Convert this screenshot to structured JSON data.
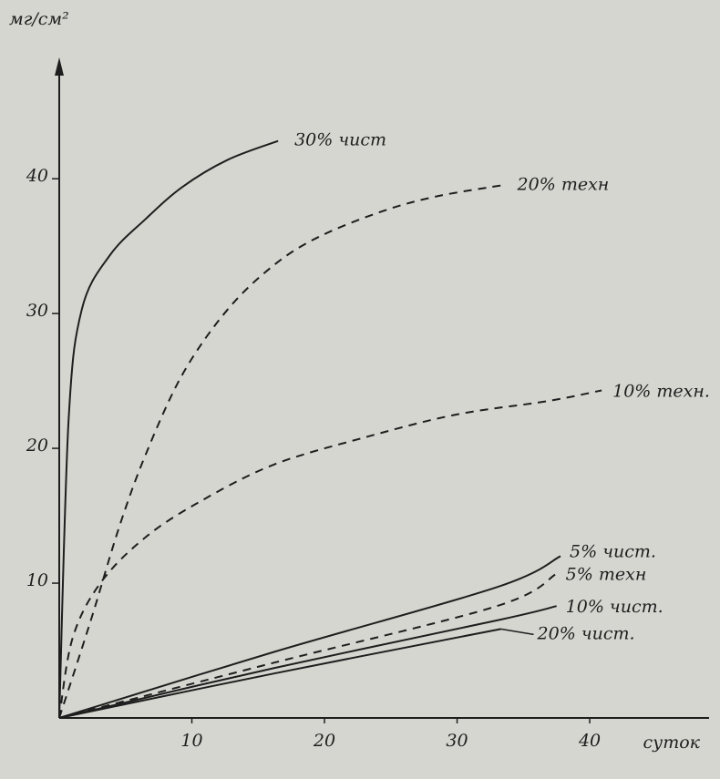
{
  "chart_data": {
    "type": "line",
    "ylabel": "мг/см²",
    "xlabel": "суток",
    "xlim": [
      0,
      49
    ],
    "ylim": [
      0,
      49
    ],
    "xticks": [
      10,
      20,
      30,
      40
    ],
    "yticks": [
      10,
      20,
      30,
      40
    ],
    "series": [
      {
        "name": "30% чист",
        "color": "#1e1e1e",
        "dashed": false,
        "x": [
          0,
          0.7,
          1.7,
          3.8,
          6.5,
          9.3,
          12.7,
          16.5
        ],
        "values": [
          0,
          22,
          30.3,
          34.3,
          37,
          39.4,
          41.4,
          42.8
        ]
      },
      {
        "name": "20% техн",
        "color": "#1e1e1e",
        "dashed": true,
        "x": [
          0,
          2.4,
          4.5,
          6.5,
          9.3,
          12.7,
          16.2,
          19.6,
          24.4,
          28.5,
          33.3
        ],
        "values": [
          0,
          7.3,
          14.1,
          19.5,
          25.5,
          30.3,
          33.6,
          35.7,
          37.6,
          38.7,
          39.5
        ]
      },
      {
        "name": "10% техн.",
        "color": "#1e1e1e",
        "dashed": true,
        "x": [
          0,
          1,
          3.1,
          6.5,
          10.7,
          16.2,
          23,
          29.9,
          36.8,
          40.9
        ],
        "values": [
          0,
          5.9,
          10,
          13.4,
          16.1,
          18.8,
          20.8,
          22.5,
          23.5,
          24.3
        ]
      },
      {
        "name": "5% чист.",
        "color": "#1e1e1e",
        "dashed": false,
        "x": [
          0,
          16.2,
          33,
          37.8
        ],
        "values": [
          0,
          4.9,
          9.7,
          12
        ]
      },
      {
        "name": "5% техн",
        "color": "#1e1e1e",
        "dashed": true,
        "x": [
          0,
          16.2,
          33,
          37.5
        ],
        "values": [
          0,
          4.1,
          8.3,
          10.7
        ]
      },
      {
        "name": "10% чист.",
        "color": "#1e1e1e",
        "dashed": false,
        "x": [
          0,
          16.2,
          33.3,
          37.5
        ],
        "values": [
          0,
          3.7,
          7.3,
          8.3
        ]
      },
      {
        "name": "20% чист.",
        "color": "#1e1e1e",
        "dashed": false,
        "x": [
          0,
          16.2,
          33.3
        ],
        "values": [
          0,
          3.3,
          6.6
        ]
      }
    ]
  }
}
